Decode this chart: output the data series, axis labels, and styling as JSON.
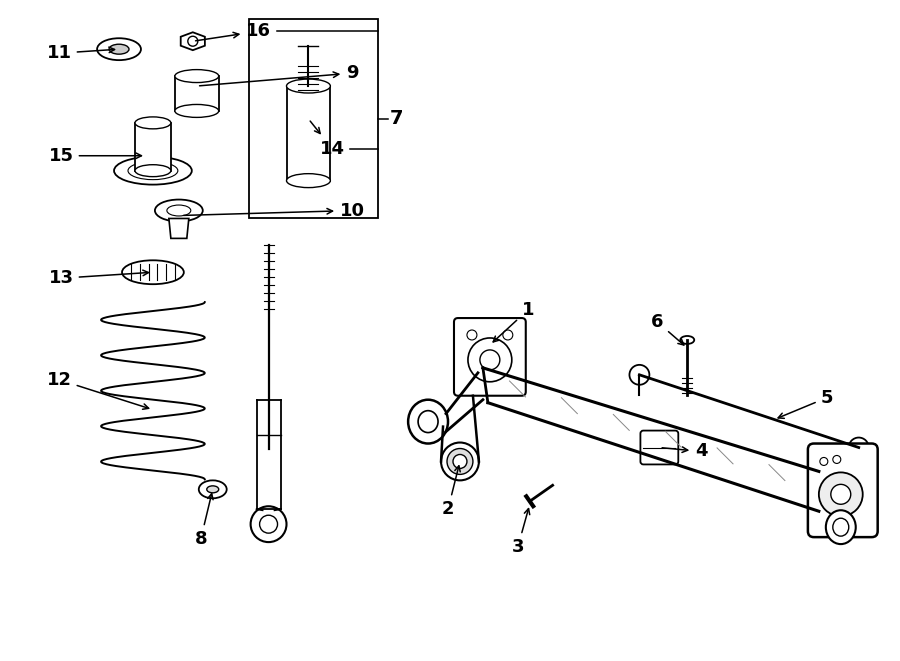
{
  "bg_color": "#ffffff",
  "line_color": "#000000",
  "text_color": "#000000",
  "fig_width": 9.0,
  "fig_height": 6.61,
  "label_fontsize": 13
}
